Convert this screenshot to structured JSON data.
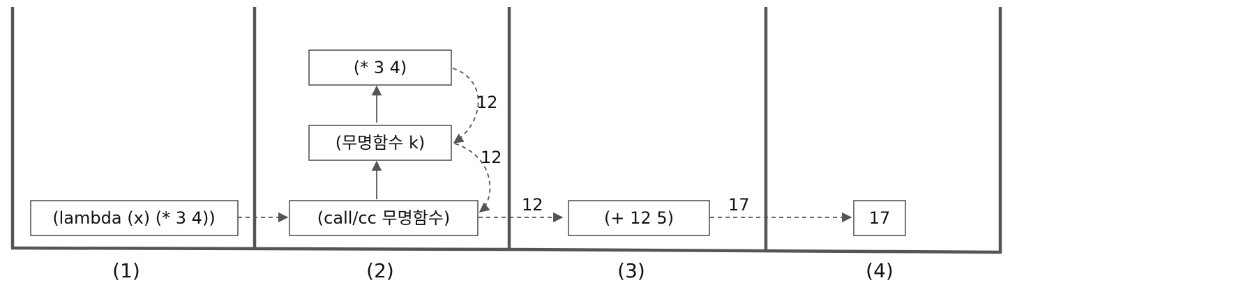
{
  "diagram": {
    "columns": [
      {
        "label": "(1)"
      },
      {
        "label": "(2)"
      },
      {
        "label": "(3)"
      },
      {
        "label": "(4)"
      }
    ],
    "nodes": {
      "lambda": "(lambda (x) (* 3 4))",
      "callcc": "(call/cc 무명함수)",
      "anon_k": "(무명함수 k)",
      "mul": "(* 3 4)",
      "add": "(+ 12 5)",
      "result": "17"
    },
    "edges": {
      "mul_to_anon_k": "12",
      "anon_k_to_callcc": "12",
      "callcc_to_add": "12",
      "add_to_result": "17"
    },
    "colors": {
      "line": "#555555",
      "text": "#111111",
      "background": "#ffffff"
    }
  }
}
